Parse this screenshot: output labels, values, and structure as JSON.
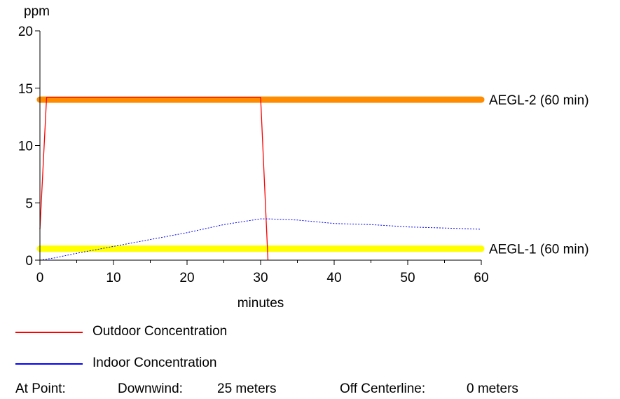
{
  "chart_data": {
    "type": "line",
    "ylabel": "ppm",
    "xlabel": "minutes",
    "xlim": [
      0,
      60
    ],
    "ylim": [
      0,
      20
    ],
    "x_ticks": [
      0,
      10,
      20,
      30,
      40,
      50,
      60
    ],
    "y_ticks": [
      0,
      5,
      10,
      15,
      20
    ],
    "grid": false,
    "thresholds": [
      {
        "label": "AEGL-2 (60 min)",
        "value": 14,
        "color": "#ff8c00"
      },
      {
        "label": "AEGL-1 (60 min)",
        "value": 1,
        "color": "#ffff00"
      }
    ],
    "series": [
      {
        "name": "Outdoor Concentration",
        "color": "#ff0000",
        "style": "solid",
        "points": [
          [
            0,
            2.7
          ],
          [
            0.9,
            14.2
          ],
          [
            30,
            14.2
          ],
          [
            31,
            0
          ]
        ]
      },
      {
        "name": "Indoor Concentration",
        "color": "#0000ff",
        "style": "dotted",
        "points": [
          [
            0,
            0
          ],
          [
            2,
            0.2
          ],
          [
            5,
            0.6
          ],
          [
            10,
            1.2
          ],
          [
            15,
            1.8
          ],
          [
            20,
            2.4
          ],
          [
            25,
            3.1
          ],
          [
            30,
            3.6
          ],
          [
            31,
            3.6
          ],
          [
            35,
            3.5
          ],
          [
            40,
            3.2
          ],
          [
            45,
            3.1
          ],
          [
            50,
            2.9
          ],
          [
            55,
            2.8
          ],
          [
            60,
            2.7
          ]
        ]
      }
    ]
  },
  "footer": {
    "at_point_label": "At Point:",
    "downwind_label": "Downwind:",
    "downwind_value": "25 meters",
    "off_centerline_label": "Off Centerline:",
    "off_centerline_value": "0 meters"
  }
}
